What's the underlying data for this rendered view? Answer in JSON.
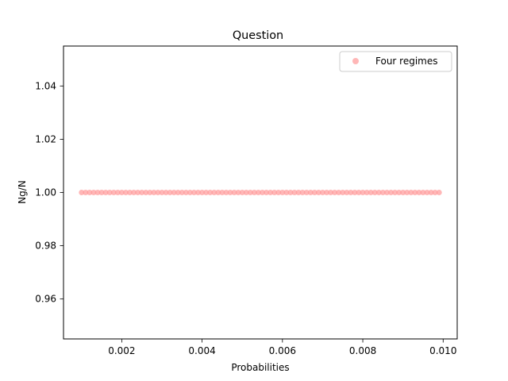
{
  "chart_data": {
    "type": "scatter",
    "title": "Question",
    "xlabel": "Probabilities",
    "ylabel": "Ng/N",
    "xlim": [
      0.00055,
      0.01035
    ],
    "ylim": [
      0.945,
      1.055
    ],
    "x_ticks": [
      0.002,
      0.004,
      0.006,
      0.008,
      0.01
    ],
    "x_tick_labels": [
      "0.002",
      "0.004",
      "0.006",
      "0.008",
      "0.010"
    ],
    "y_ticks": [
      0.96,
      0.98,
      1.0,
      1.02,
      1.04
    ],
    "y_tick_labels": [
      "0.96",
      "0.98",
      "1.00",
      "1.02",
      "1.04"
    ],
    "grid": false,
    "legend_position": "top-right",
    "series": [
      {
        "name": "Four regimes",
        "color": "#ff9999",
        "alpha": 0.7,
        "x_start": 0.001,
        "x_step": 0.0001,
        "count": 90,
        "y_value": 1.0
      }
    ]
  }
}
